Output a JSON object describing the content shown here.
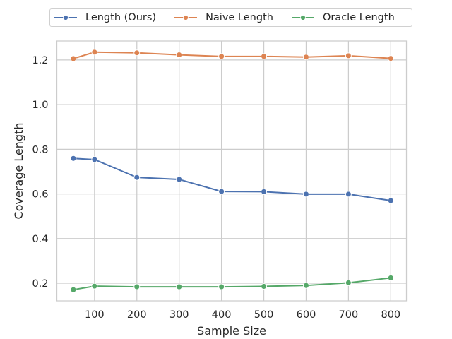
{
  "chart_data": {
    "type": "line",
    "title": "",
    "xlabel": "Sample Size",
    "ylabel": "Coverage Length",
    "x": [
      50,
      100,
      200,
      300,
      400,
      500,
      600,
      700,
      800
    ],
    "xticks": [
      100,
      200,
      300,
      400,
      500,
      600,
      700,
      800
    ],
    "yticks": [
      0.2,
      0.4,
      0.6,
      0.8,
      1.0,
      1.2
    ],
    "ytick_labels": [
      "0.2",
      "0.4",
      "0.6",
      "0.8",
      "1.0",
      "1.2"
    ],
    "xlim": [
      11,
      837
    ],
    "ylim": [
      0.121,
      1.285
    ],
    "grid": true,
    "legend_position": "top (outside plot, horizontal)",
    "series": [
      {
        "name": "Length (Ours)",
        "color": "#4c72b0",
        "values": [
          0.759,
          0.754,
          0.674,
          0.665,
          0.611,
          0.61,
          0.599,
          0.599,
          0.57
        ]
      },
      {
        "name": "Naive Length",
        "color": "#dd8452",
        "values": [
          1.206,
          1.235,
          1.232,
          1.223,
          1.216,
          1.216,
          1.213,
          1.219,
          1.207
        ]
      },
      {
        "name": "Oracle Length",
        "color": "#55a868",
        "values": [
          0.171,
          0.187,
          0.184,
          0.184,
          0.184,
          0.186,
          0.19,
          0.202,
          0.224
        ]
      }
    ]
  },
  "legend": {
    "items": [
      "Length (Ours)",
      "Naive Length",
      "Oracle Length"
    ]
  }
}
